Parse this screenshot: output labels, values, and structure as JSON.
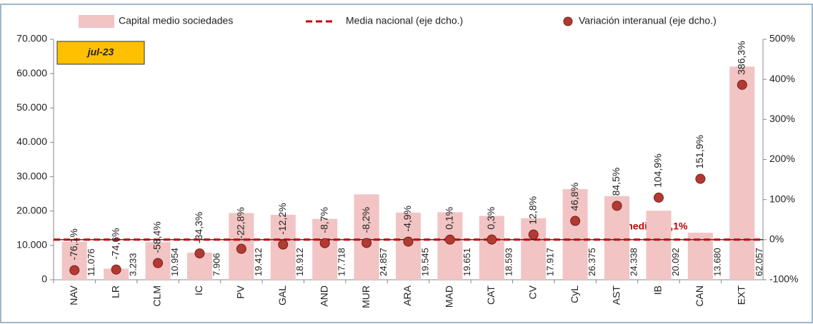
{
  "chart_data": {
    "type": "bar",
    "categories": [
      "NAV",
      "LR",
      "CLM",
      "IC",
      "PV",
      "GAL",
      "AND",
      "MUR",
      "ARA",
      "MAD",
      "CAT",
      "CV",
      "CyL",
      "AST",
      "IB",
      "CAN",
      "EXT"
    ],
    "series": [
      {
        "name": "Capital medio sociedades",
        "type": "bar",
        "color": "#f2c4c4",
        "values": [
          11076,
          3233,
          10954,
          7906,
          19412,
          18912,
          17718,
          24857,
          19545,
          19651,
          18593,
          17917,
          26375,
          24338,
          20092,
          13680,
          62057
        ],
        "value_labels": [
          "11.076",
          "3.233",
          "10.954",
          "7.906",
          "19.412",
          "18.912",
          "17.718",
          "24.857",
          "19.545",
          "19.651",
          "18.593",
          "17.917",
          "26.375",
          "24.338",
          "20.092",
          "13.680",
          "62.057"
        ]
      },
      {
        "name": "Media nacional (eje dcho.)",
        "type": "line",
        "axis": "y2",
        "color": "#c00000",
        "values": [
          0.1,
          0.1,
          0.1,
          0.1,
          0.1,
          0.1,
          0.1,
          0.1,
          0.1,
          0.1,
          0.1,
          0.1,
          0.1,
          0.1,
          0.1,
          0.1,
          0.1
        ]
      },
      {
        "name": "Variación interanual (eje dcho.)",
        "type": "scatter",
        "axis": "y2",
        "color": "#b23a32",
        "values": [
          -76.1,
          -74.6,
          -58.4,
          -34.3,
          -22.8,
          -12.2,
          -8.7,
          -8.2,
          -4.9,
          0.1,
          0.3,
          12.8,
          46.8,
          84.5,
          104.9,
          151.9,
          386.3
        ],
        "value_labels": [
          "-76,1%",
          "-74,6%",
          "-58,4%",
          "-34,3%",
          "-22,8%",
          "-12,2%",
          "-8,7%",
          "-8,2%",
          "-4,9%",
          "0,1%",
          "0,3%",
          "12,8%",
          "46,8%",
          "84,5%",
          "104,9%",
          "151,9%",
          "386,3%"
        ]
      }
    ],
    "ylim": [
      0,
      70000
    ],
    "yticks": [
      {
        "value": 0,
        "label": "0"
      },
      {
        "value": 10000,
        "label": "10.000"
      },
      {
        "value": 20000,
        "label": "20.000"
      },
      {
        "value": 30000,
        "label": "30.000"
      },
      {
        "value": 40000,
        "label": "40.000"
      },
      {
        "value": 50000,
        "label": "50.000"
      },
      {
        "value": 60000,
        "label": "60.000"
      },
      {
        "value": 70000,
        "label": "70.000"
      }
    ],
    "y2lim": [
      -100,
      500
    ],
    "y2ticks": [
      {
        "value": -100,
        "label": "-100%"
      },
      {
        "value": 0,
        "label": "0%"
      },
      {
        "value": 100,
        "label": "100%"
      },
      {
        "value": 200,
        "label": "200%"
      },
      {
        "value": 300,
        "label": "300%"
      },
      {
        "value": 400,
        "label": "400%"
      },
      {
        "value": 500,
        "label": "500%"
      }
    ],
    "annotations": {
      "period": "jul-23",
      "average": "Promedio = 0,1%"
    }
  }
}
